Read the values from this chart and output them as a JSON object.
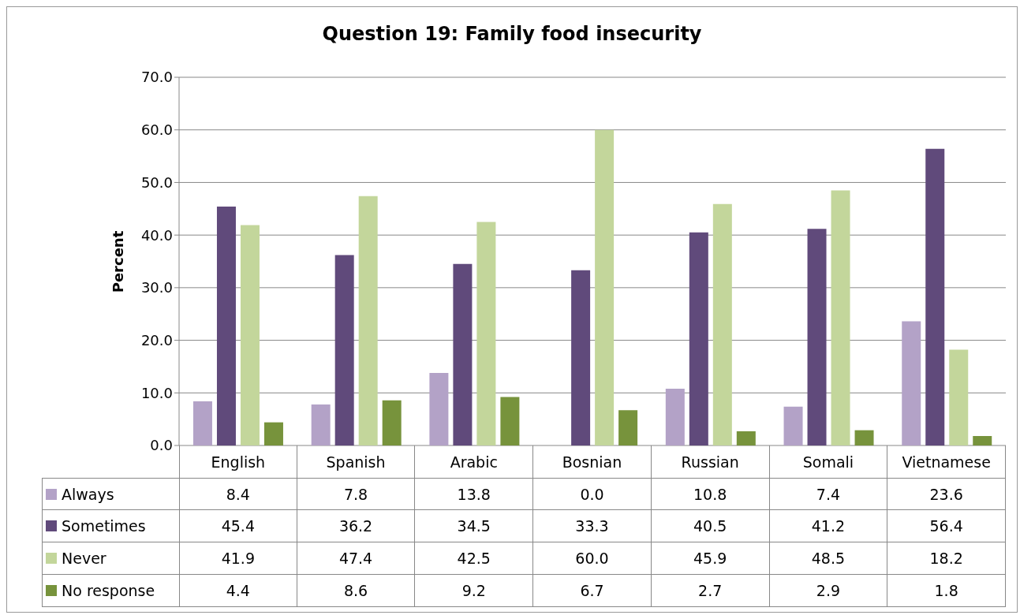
{
  "chart_data": {
    "type": "bar",
    "title": "Question 19: Family food insecurity",
    "ylabel": "Percent",
    "categories": [
      "English",
      "Spanish",
      "Arabic",
      "Bosnian",
      "Russian",
      "Somali",
      "Vietnamese"
    ],
    "series": [
      {
        "name": "Always",
        "color": "#b3a2c7",
        "values": [
          8.4,
          7.8,
          13.8,
          0.0,
          10.8,
          7.4,
          23.6
        ],
        "value_labels": [
          "8.4",
          "7.8",
          "13.8",
          "0.0",
          "10.8",
          "7.4",
          "23.6"
        ]
      },
      {
        "name": "Sometimes",
        "color": "#604a7b",
        "values": [
          45.4,
          36.2,
          34.5,
          33.3,
          40.5,
          41.2,
          56.4
        ],
        "value_labels": [
          "45.4",
          "36.2",
          "34.5",
          "33.3",
          "40.5",
          "41.2",
          "56.4"
        ]
      },
      {
        "name": "Never",
        "color": "#c3d69b",
        "values": [
          41.9,
          47.4,
          42.5,
          60.0,
          45.9,
          48.5,
          18.2
        ],
        "value_labels": [
          "41.9",
          "47.4",
          "42.5",
          "60.0",
          "45.9",
          "48.5",
          "18.2"
        ]
      },
      {
        "name": "No response",
        "color": "#77933c",
        "values": [
          4.4,
          8.6,
          9.2,
          6.7,
          2.7,
          2.9,
          1.8
        ],
        "value_labels": [
          "4.4",
          "8.6",
          "9.2",
          "6.7",
          "2.7",
          "2.9",
          "1.8"
        ]
      }
    ],
    "ylim": [
      0,
      70
    ],
    "yticks": [
      {
        "value": 0,
        "label": "0.0"
      },
      {
        "value": 10,
        "label": "10.0"
      },
      {
        "value": 20,
        "label": "20.0"
      },
      {
        "value": 30,
        "label": "30.0"
      },
      {
        "value": 40,
        "label": "40.0"
      },
      {
        "value": 50,
        "label": "50.0"
      },
      {
        "value": 60,
        "label": "60.0"
      },
      {
        "value": 70,
        "label": "70.0"
      }
    ],
    "grid": "y",
    "legend": "bottom"
  }
}
